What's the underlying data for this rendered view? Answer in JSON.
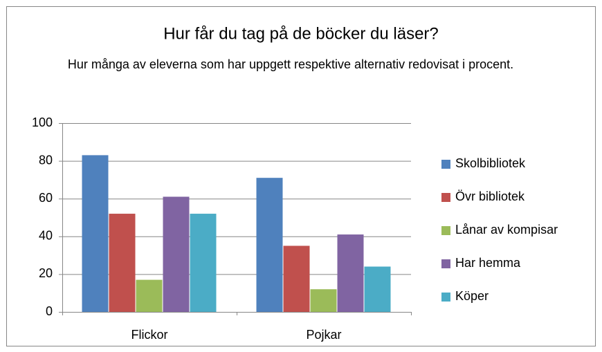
{
  "chart_data": {
    "type": "bar",
    "title": "Hur får du tag på de böcker du läser?",
    "subtitle": "Hur många av eleverna som har uppgett respektive alternativ redovisat i procent.",
    "categories": [
      "Flickor",
      "Pojkar"
    ],
    "series": [
      {
        "name": "Skolbibliotek",
        "color": "#4f81bd",
        "values": [
          83,
          71
        ]
      },
      {
        "name": "Övr bibliotek",
        "color": "#c0504d",
        "values": [
          52,
          35
        ]
      },
      {
        "name": "Lånar av kompisar",
        "color": "#9bbb59",
        "values": [
          17,
          12
        ]
      },
      {
        "name": "Har hemma",
        "color": "#8064a2",
        "values": [
          61,
          41
        ]
      },
      {
        "name": "Köper",
        "color": "#4bacc6",
        "values": [
          52,
          24
        ]
      }
    ],
    "ylim": [
      0,
      100
    ],
    "yticks": [
      0,
      20,
      40,
      60,
      80,
      100
    ],
    "grid": true,
    "legend": "right"
  }
}
